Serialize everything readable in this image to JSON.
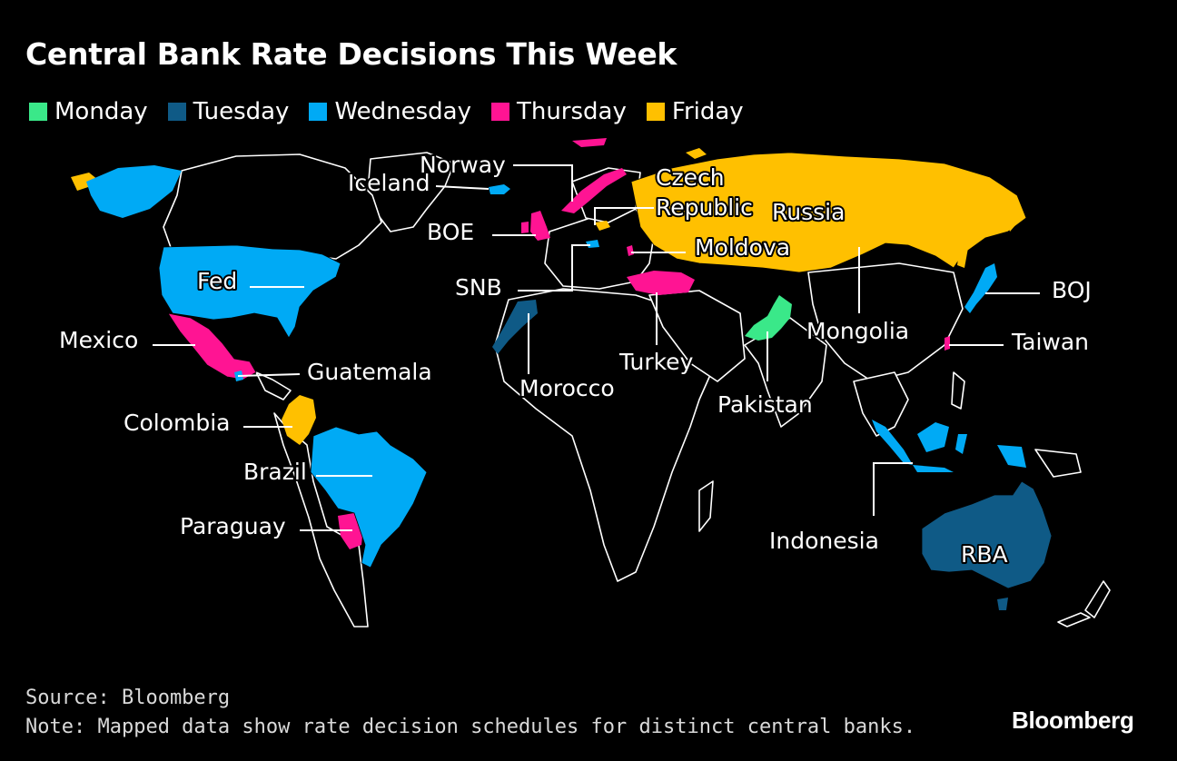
{
  "title": "Central Bank Rate Decisions This Week",
  "legend": [
    {
      "label": "Monday",
      "color": "#3ae889"
    },
    {
      "label": "Tuesday",
      "color": "#0f5a86"
    },
    {
      "label": "Wednesday",
      "color": "#00aaf5"
    },
    {
      "label": "Thursday",
      "color": "#ff1493"
    },
    {
      "label": "Friday",
      "color": "#ffc000"
    }
  ],
  "labels": {
    "iceland": "Iceland",
    "norway": "Norway",
    "czech": "Czech",
    "republic": "Republic",
    "russia": "Russia",
    "boe": "BOE",
    "moldova": "Moldova",
    "snb": "SNB",
    "fed": "Fed",
    "boj": "BOJ",
    "mexico": "Mexico",
    "mongolia": "Mongolia",
    "taiwan": "Taiwan",
    "turkey": "Turkey",
    "guatemala": "Guatemala",
    "morocco": "Morocco",
    "pakistan": "Pakistan",
    "colombia": "Colombia",
    "brazil": "Brazil",
    "indonesia": "Indonesia",
    "paraguay": "Paraguay",
    "rba": "RBA"
  },
  "source": "Source: Bloomberg",
  "note": "Note: Mapped data show rate decision schedules for distinct central banks.",
  "brand": "Bloomberg"
}
